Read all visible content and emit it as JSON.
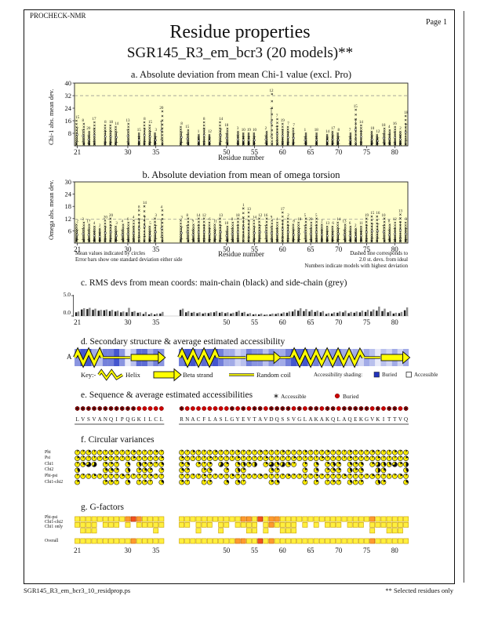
{
  "page": {
    "app_name": "PROCHECK-NMR",
    "page_label": "Page 1",
    "title": "Residue properties",
    "subtitle": "SGR145_R3_em_bcr3 (20 models)**",
    "footer_left": "SGR145_R3_em_bcr3_10_residprop.ps",
    "footer_right": "** Selected residues only"
  },
  "axis": {
    "x_label": "Residue number",
    "x_ticks": [
      21,
      30,
      35,
      50,
      55,
      60,
      65,
      70,
      75,
      80
    ],
    "left_block": {
      "start": 21,
      "end": 36
    },
    "right_block": {
      "start": 42,
      "end": 82
    }
  },
  "annotations": {
    "left_lines": [
      "Mean values indicated by circles",
      "Error bars show one standard deviation either side"
    ],
    "right_lines": [
      "Dashed line corresponds to",
      "2.0 st. devs. from ideal",
      "Numbers indicate models with highest deviation"
    ]
  },
  "chart_data": [
    {
      "id": "chi1",
      "type": "scatter",
      "title": "a. Absolute deviation from mean Chi-1 value (excl. Pro)",
      "ylabel": "Chi-1 abs. mean dev.",
      "xlabel": "Residue number",
      "ylim": [
        0,
        40
      ],
      "yticks": [
        8,
        16,
        24,
        32,
        40
      ],
      "dashed_line_y": 32,
      "plot_bg": "#ffffcc",
      "note": "clusters = [residue, model_number_with_highest_deviation, max_abs_deviation]",
      "clusters": [
        [
          21,
          15,
          16
        ],
        [
          22,
          8,
          14
        ],
        [
          23,
          20,
          9
        ],
        [
          24,
          17,
          15
        ],
        [
          26,
          8,
          13
        ],
        [
          27,
          18,
          13
        ],
        [
          28,
          14,
          12
        ],
        [
          30,
          13,
          14
        ],
        [
          32,
          15,
          8
        ],
        [
          33,
          8,
          15
        ],
        [
          34,
          15,
          13
        ],
        [
          35,
          3,
          8
        ],
        [
          36,
          20,
          22
        ],
        [
          42,
          8,
          12
        ],
        [
          43,
          15,
          10
        ],
        [
          45,
          1,
          7
        ],
        [
          46,
          8,
          15
        ],
        [
          47,
          12,
          7
        ],
        [
          49,
          14,
          15
        ],
        [
          50,
          18,
          11
        ],
        [
          52,
          3,
          9
        ],
        [
          53,
          10,
          8
        ],
        [
          54,
          19,
          8
        ],
        [
          55,
          10,
          8
        ],
        [
          57,
          2,
          9
        ],
        [
          58,
          12,
          33
        ],
        [
          59,
          7,
          17
        ],
        [
          60,
          19,
          14
        ],
        [
          61,
          7,
          12
        ],
        [
          62,
          7,
          11
        ],
        [
          64,
          1,
          8
        ],
        [
          66,
          18,
          8
        ],
        [
          68,
          14,
          7
        ],
        [
          69,
          17,
          9
        ],
        [
          70,
          8,
          8
        ],
        [
          72,
          7,
          8
        ],
        [
          73,
          15,
          23
        ],
        [
          74,
          14,
          13
        ],
        [
          76,
          10,
          9
        ],
        [
          77,
          12,
          7
        ],
        [
          78,
          18,
          11
        ],
        [
          79,
          4,
          10
        ],
        [
          80,
          16,
          12
        ],
        [
          81,
          2,
          9
        ],
        [
          82,
          18,
          19
        ]
      ]
    },
    {
      "id": "omega",
      "type": "scatter",
      "title": "b. Absolute deviation from mean of omega torsion",
      "ylabel": "Omega abs. mean dev.",
      "xlabel": "Residue number",
      "ylim": [
        0,
        30
      ],
      "yticks": [
        6,
        12,
        18,
        24,
        30
      ],
      "dashed_line_y": 11.7,
      "plot_bg": "#ffffcc",
      "note": "clusters = [residue, model_number_with_highest_deviation, max_abs_deviation]",
      "clusters": [
        [
          21,
          2,
          9
        ],
        [
          22,
          3,
          10
        ],
        [
          23,
          17,
          9
        ],
        [
          24,
          4,
          8
        ],
        [
          25,
          2,
          7
        ],
        [
          26,
          20,
          11
        ],
        [
          27,
          20,
          12
        ],
        [
          28,
          3,
          8
        ],
        [
          29,
          4,
          9
        ],
        [
          30,
          6,
          10
        ],
        [
          31,
          4,
          11
        ],
        [
          32,
          8,
          16
        ],
        [
          33,
          14,
          18
        ],
        [
          34,
          5,
          8
        ],
        [
          35,
          3,
          12
        ],
        [
          36,
          4,
          16
        ],
        [
          42,
          3,
          11
        ],
        [
          43,
          8,
          12
        ],
        [
          44,
          9,
          9
        ],
        [
          45,
          14,
          12
        ],
        [
          46,
          12,
          12
        ],
        [
          47,
          6,
          10
        ],
        [
          48,
          11,
          9
        ],
        [
          49,
          13,
          12
        ],
        [
          50,
          10,
          8
        ],
        [
          51,
          8,
          10
        ],
        [
          52,
          18,
          12
        ],
        [
          53,
          1,
          17
        ],
        [
          54,
          13,
          15
        ],
        [
          55,
          14,
          11
        ],
        [
          56,
          12,
          12
        ],
        [
          57,
          16,
          12
        ],
        [
          58,
          9,
          11
        ],
        [
          59,
          4,
          10
        ],
        [
          60,
          17,
          15
        ],
        [
          61,
          2,
          12
        ],
        [
          62,
          8,
          9
        ],
        [
          63,
          18,
          10
        ],
        [
          64,
          5,
          12
        ],
        [
          65,
          20,
          10
        ],
        [
          66,
          5,
          12
        ],
        [
          67,
          2,
          9
        ],
        [
          68,
          13,
          8
        ],
        [
          69,
          6,
          8
        ],
        [
          70,
          14,
          10
        ],
        [
          71,
          13,
          9
        ],
        [
          72,
          6,
          8
        ],
        [
          73,
          2,
          7
        ],
        [
          74,
          11,
          8
        ],
        [
          75,
          19,
          12
        ],
        [
          76,
          15,
          13
        ],
        [
          77,
          16,
          13
        ],
        [
          78,
          10,
          12
        ],
        [
          79,
          8,
          9
        ],
        [
          80,
          12,
          10
        ],
        [
          81,
          13,
          14
        ],
        [
          82,
          9,
          10
        ]
      ]
    },
    {
      "id": "rms",
      "type": "bar",
      "title": "c. RMS devs from mean coords: main-chain (black) and side-chain (grey)",
      "ylim": [
        0,
        5
      ],
      "ytick_labels": [
        "5.0",
        "0.0"
      ],
      "series": [
        {
          "name": "main-chain",
          "color": "#1a1a1a",
          "values_left": [
            0.9,
            1.6,
            1.7,
            1.5,
            1.3,
            1.4,
            1.2,
            1.1,
            0.9,
            0.9,
            1.0,
            0.8,
            0.5,
            0.4,
            0.4,
            0.6
          ],
          "values_right": [
            1.5,
            0.9,
            0.8,
            0.7,
            0.6,
            0.7,
            0.9,
            0.8,
            0.7,
            0.6,
            1.0,
            0.8,
            0.5,
            0.4,
            0.4,
            0.3,
            0.4,
            0.5,
            0.6,
            0.8,
            1.1,
            1.3,
            1.2,
            1.1,
            1.0,
            0.9,
            0.5,
            0.6,
            0.8,
            0.9,
            0.7,
            0.8,
            0.9,
            1.0,
            1.1,
            1.3,
            1.2,
            0.9,
            0.6,
            0.7,
            1.4
          ]
        },
        {
          "name": "side-chain",
          "color": "#8a8a8a",
          "values_left": [
            1.1,
            1.9,
            2.0,
            1.8,
            1.5,
            1.6,
            1.5,
            1.3,
            1.1,
            2.0,
            1.2,
            0.9,
            1.0,
            0.7,
            0.6,
            1.0
          ],
          "values_right": [
            1.8,
            1.2,
            1.0,
            0.9,
            0.8,
            0.9,
            1.2,
            1.0,
            0.9,
            0.8,
            1.3,
            1.0,
            0.7,
            0.5,
            0.6,
            0.4,
            0.6,
            0.7,
            0.9,
            1.1,
            1.6,
            1.9,
            1.7,
            1.5,
            1.3,
            1.2,
            0.7,
            0.9,
            1.1,
            1.3,
            1.0,
            1.1,
            1.3,
            1.5,
            1.6,
            2.3,
            1.8,
            1.2,
            0.8,
            1.0,
            2.1
          ]
        }
      ]
    }
  ],
  "secondary_structure": {
    "title": "d. Secondary structure & average estimated accessibility",
    "chain_label": "A",
    "segments": [
      {
        "type": "helix",
        "from": 21,
        "to": 25
      },
      {
        "type": "coil",
        "from": 26,
        "to": 30
      },
      {
        "type": "strand",
        "from": 31,
        "to": 36
      },
      {
        "type": "helix",
        "from": 42,
        "to": 48
      },
      {
        "type": "coil",
        "from": 49,
        "to": 53
      },
      {
        "type": "strand",
        "from": 54,
        "to": 59
      },
      {
        "type": "coil",
        "from": 60,
        "to": 61
      },
      {
        "type": "helix",
        "from": 62,
        "to": 74
      },
      {
        "type": "coil",
        "from": 75,
        "to": 77
      },
      {
        "type": "strand",
        "from": 78,
        "to": 82
      }
    ],
    "accessibility_shading_left": "5884366851377465",
    "accessibility_shading_right": "68857786442365535446878563456434243132424",
    "key": {
      "prefix": "Key:-",
      "helix_label": "Helix",
      "strand_label": "Beta strand",
      "coil_label": "Random coil",
      "shading_label": "Accessibility shading:",
      "buried_label": "Buried",
      "accessible_label": "Accessible",
      "buried_color": "#2233bb",
      "accessible_color": "#ffffff"
    }
  },
  "sequence_panel": {
    "title": "e. Sequence & average estimated accessibilities",
    "legend": [
      {
        "symbol": "asterisk",
        "label": "Accessible",
        "color": "#111111"
      },
      {
        "symbol": "filled-circle",
        "label": "Buried",
        "color": "#cc0000"
      }
    ],
    "left_residues": "LVSVANQIPQGKILCL",
    "right_residues": "RNACFLASLGYEVTAVDQSSVGLAKAKQLAQEKGVKITTVQ",
    "left_access": "mmmmmmmmmmmbbbbb",
    "right_access": "mbbbbbbbbmbmbmmbmmmmbmbmmbmmbmmmmmbmbmmbm"
  },
  "circular_variances": {
    "title": "f. Circular variances",
    "note": "digit/10 = black wedge fraction, '.' = not applicable",
    "rows": [
      {
        "label": "Phi",
        "left": "1121112111211121",
        "right": "11211121112111211121112111211121112111211"
      },
      {
        "label": "Psi",
        "left": "2111121111211112",
        "right": "21111211112111121111211112111121111211112"
      },
      {
        "label": "Chi1",
        "left": "1376.221.3.42213",
        "right": "23.212.62.3425.273631.2.3.242.323.2643725"
      },
      {
        "label": "Chi2",
        "left": "4....332.4.232.2",
        "right": "32..23..2.42....32....2.3.232.423..53...4"
      },
      {
        "label": "Phi-psi",
        "left": "1112111121111211",
        "right": "11112111121111211112111121111211112111121"
      },
      {
        "label": "Chi1-chi2",
        "left": "2....221.3.121.3",
        "right": "21..12..3.31....23....1.2.121.312..42...3"
      }
    ]
  },
  "g_factors": {
    "title": "g. G-factors",
    "note": "y = favourable (yellow), o = less favourable (orange), r = unfavourable (red-orange), '.' = not applicable",
    "colors": {
      "y": "#ffef3d",
      "o": "#ff9a2e",
      "r": "#f4511e"
    },
    "rows": [
      {
        "label": "Phi-psi",
        "left": "yyyyyyyyyoroyyyy",
        "right": "yyyyyyyyyyyooyryooyyyyyyyyyyyyyyyyoyyyyyy"
      },
      {
        "label": "Chi1-chi2",
        "left": "yyyy.yyy.y.yyyyy",
        "right": "yy.yyy.yy.yyyy.yoyyyy.y.y.yyy.yyy.yyyyyyy"
      },
      {
        "label": "Chi1 only",
        "left": ".yyy..........y.",
        "right": "...y...y....yy.y..yyy.............y..yyy."
      }
    ],
    "overall_row": {
      "label": "Overall",
      "left": "yyyyyyyyyyoyyyyy",
      "right": "yyyyyyyyyyooyyryoyyyyyyyyyyyyyyyyyoyyyyyy"
    }
  },
  "colors": {
    "plot_background": "#ffffcc",
    "dashed_line": "#8a8a8a",
    "marks": "#111111",
    "buried_red": "#cc0000",
    "buried_blue": "#2233bb",
    "structure_yellow": "#ffff00"
  }
}
